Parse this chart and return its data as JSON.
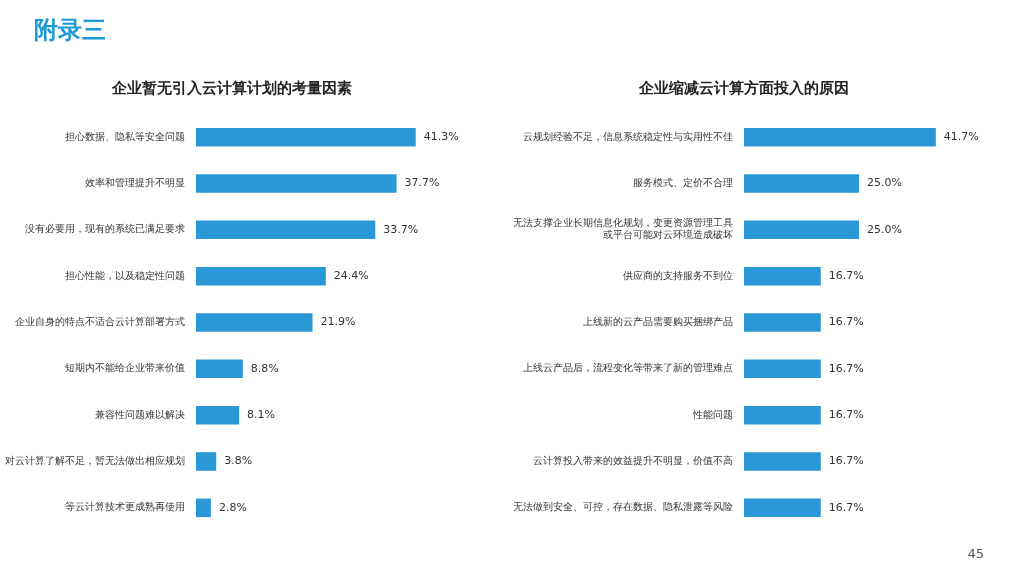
{
  "chart_data": [
    {
      "type": "bar",
      "orientation": "horizontal",
      "title": "企业暂无引入云计算计划的考量因素",
      "annotations": [
        "附录三"
      ],
      "categories": [
        "担心数据、隐私等安全问题",
        "效率和管理提升不明显",
        "没有必要用，现有的系统已满足要求",
        "担心性能，以及稳定性问题",
        "企业自身的特点不适合云计算部署方式",
        "短期内不能给企业带来价值",
        "兼容性问题难以解决",
        "对云计算了解不足，暂无法做出相应规划",
        "等云计算技术更成熟再使用"
      ],
      "values": [
        41.3,
        37.7,
        33.7,
        24.4,
        21.9,
        8.8,
        8.1,
        3.8,
        2.8
      ],
      "value_labels": [
        "41.3%",
        "37.7%",
        "33.7%",
        "24.4%",
        "21.9%",
        "8.8%",
        "8.1%",
        "3.8%",
        "2.8%"
      ],
      "color": "#2a98d6",
      "legend": false,
      "tick_labels": "y"
    },
    {
      "type": "bar",
      "orientation": "horizontal",
      "title": "企业缩减云计算方面投入的原因",
      "annotations": [
        "45"
      ],
      "categories": [
        "云规划经验不足，信息系统稳定性与实用性不佳",
        "服务模式、定价不合理",
        "无法支撑企业长期信息化规划，变更资源管理工具或平台可能对云环境造成破坏",
        "供应商的支持服务不到位",
        "上线新的云产品需要购买捆绑产品",
        "上线云产品后，流程变化等带来了新的管理难点",
        "性能问题",
        "云计算投入带来的效益提升不明显，价值不高",
        "无法做到安全、可控，存在数据、隐私泄露等风险"
      ],
      "values": [
        41.7,
        25.0,
        25.0,
        16.7,
        16.7,
        16.7,
        16.7,
        16.7,
        16.7
      ],
      "value_labels": [
        "41.7%",
        "25.0%",
        "25.0%",
        "16.7%",
        "16.7%",
        "16.7%",
        "16.7%",
        "16.7%",
        "16.7%"
      ],
      "color": "#2a98d6",
      "legend": false,
      "tick_labels": "y"
    }
  ]
}
